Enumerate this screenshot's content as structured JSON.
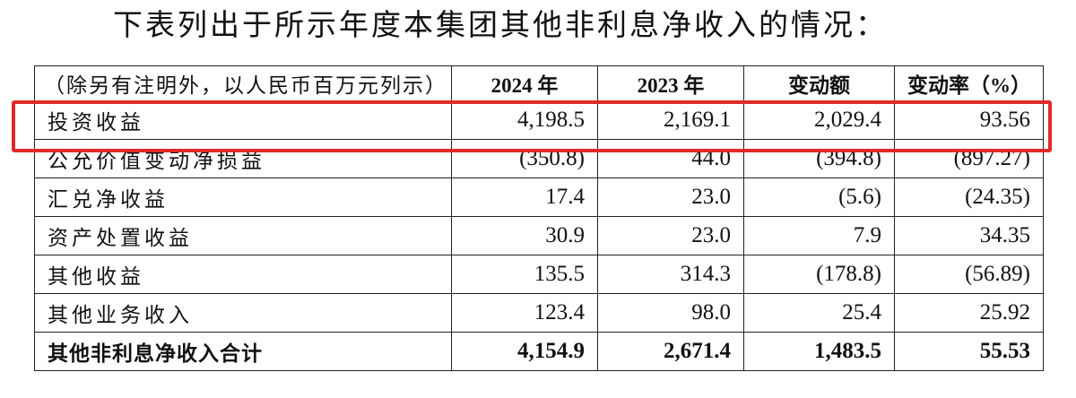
{
  "intro": "下表列出于所示年度本集团其他非利息净收入的情况：",
  "table": {
    "headers": [
      "（除另有注明外，以人民币百万元列示）",
      "2024 年",
      "2023 年",
      "变动额",
      "变动率（%）"
    ],
    "rows": [
      {
        "label": "投资收益",
        "values": [
          "4,198.5",
          "2,169.1",
          "2,029.4",
          "93.56"
        ]
      },
      {
        "label": "公允价值变动净损益",
        "values": [
          "(350.8)",
          "44.0",
          "(394.8)",
          "(897.27)"
        ]
      },
      {
        "label": "汇兑净收益",
        "values": [
          "17.4",
          "23.0",
          "(5.6)",
          "(24.35)"
        ]
      },
      {
        "label": "资产处置收益",
        "values": [
          "30.9",
          "23.0",
          "7.9",
          "34.35"
        ]
      },
      {
        "label": "其他收益",
        "values": [
          "135.5",
          "314.3",
          "(178.8)",
          "(56.89)"
        ]
      },
      {
        "label": "其他业务收入",
        "values": [
          "123.4",
          "98.0",
          "25.4",
          "25.92"
        ]
      }
    ],
    "total": {
      "label": "其他非利息净收入合计",
      "values": [
        "4,154.9",
        "2,671.4",
        "1,483.5",
        "55.53"
      ]
    }
  },
  "highlight_color": "#e02a2a"
}
